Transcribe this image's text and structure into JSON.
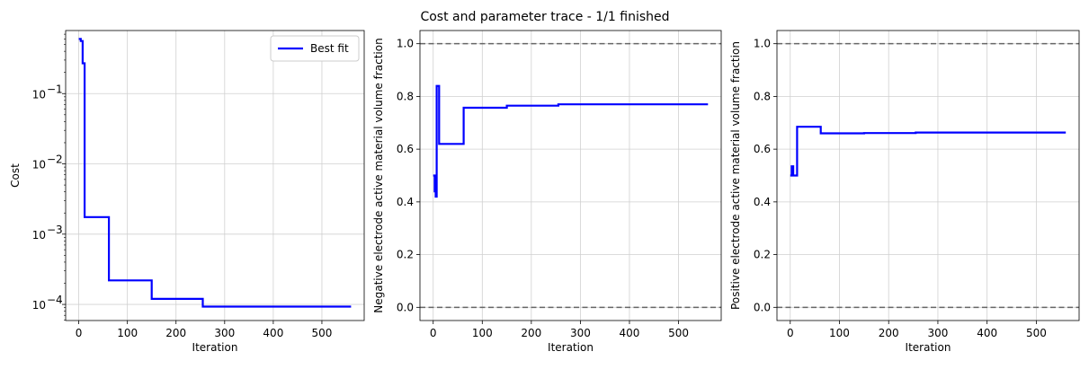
{
  "suptitle": "Cost and parameter trace - 1/1 finished",
  "colors": {
    "series": "#0000ff",
    "reference": "#666666",
    "grid": "#d0d0d0",
    "axis": "#000000"
  },
  "chart_data": [
    {
      "type": "line",
      "xlabel": "Iteration",
      "ylabel": "Cost",
      "yscale": "log",
      "xlim": [
        -27,
        587
      ],
      "ylim": [
        5.9e-05,
        0.79
      ],
      "xticks": [
        0,
        100,
        200,
        300,
        400,
        500
      ],
      "xtick_labels": [
        "0",
        "100",
        "200",
        "300",
        "400",
        "500"
      ],
      "yticks": [
        0.0001,
        0.001,
        0.01,
        0.1
      ],
      "ytick_labels": [
        "10",
        "10",
        "10",
        "10"
      ],
      "ytick_exponents": [
        "−4",
        "−3",
        "−2",
        "−1"
      ],
      "grid": true,
      "legend": {
        "placement": "top-right",
        "entries": [
          "Best fit"
        ]
      },
      "series": [
        {
          "name": "Best fit",
          "x": [
            0,
            4,
            4,
            8,
            8,
            12,
            12,
            62,
            62,
            150,
            150,
            255,
            255,
            560
          ],
          "y": [
            0.6,
            0.6,
            0.56,
            0.56,
            0.27,
            0.27,
            0.00175,
            0.00175,
            0.00022,
            0.00022,
            0.00012,
            0.00012,
            9.3e-05,
            9.3e-05
          ]
        }
      ]
    },
    {
      "type": "line",
      "xlabel": "Iteration",
      "ylabel": "Negative electrode active material volume fraction",
      "xlim": [
        -27,
        587
      ],
      "ylim": [
        -0.05,
        1.05
      ],
      "xticks": [
        0,
        100,
        200,
        300,
        400,
        500
      ],
      "xtick_labels": [
        "0",
        "100",
        "200",
        "300",
        "400",
        "500"
      ],
      "yticks": [
        0,
        0.2,
        0.4,
        0.6,
        0.8,
        1.0
      ],
      "ytick_labels": [
        "0.0",
        "0.2",
        "0.4",
        "0.6",
        "0.8",
        "1.0"
      ],
      "grid": true,
      "reference_lines": [
        0,
        1
      ],
      "series": [
        {
          "x": [
            0,
            3,
            3,
            5,
            5,
            7,
            7,
            12,
            12,
            62,
            62,
            150,
            150,
            255,
            255,
            560
          ],
          "y": [
            0.5,
            0.5,
            0.44,
            0.44,
            0.42,
            0.42,
            0.84,
            0.84,
            0.62,
            0.62,
            0.757,
            0.757,
            0.765,
            0.765,
            0.77,
            0.77
          ]
        }
      ]
    },
    {
      "type": "line",
      "xlabel": "Iteration",
      "ylabel": "Positive electrode active material volume fraction",
      "xlim": [
        -27,
        587
      ],
      "ylim": [
        -0.05,
        1.05
      ],
      "xticks": [
        0,
        100,
        200,
        300,
        400,
        500
      ],
      "xtick_labels": [
        "0",
        "100",
        "200",
        "300",
        "400",
        "500"
      ],
      "yticks": [
        0,
        0.2,
        0.4,
        0.6,
        0.8,
        1.0
      ],
      "ytick_labels": [
        "0.0",
        "0.2",
        "0.4",
        "0.6",
        "0.8",
        "1.0"
      ],
      "grid": true,
      "reference_lines": [
        0,
        1
      ],
      "series": [
        {
          "x": [
            0,
            3,
            3,
            6,
            6,
            14,
            14,
            62,
            62,
            150,
            150,
            255,
            255,
            560
          ],
          "y": [
            0.5,
            0.5,
            0.535,
            0.535,
            0.5,
            0.5,
            0.685,
            0.685,
            0.66,
            0.66,
            0.661,
            0.661,
            0.663,
            0.663
          ]
        }
      ]
    }
  ]
}
